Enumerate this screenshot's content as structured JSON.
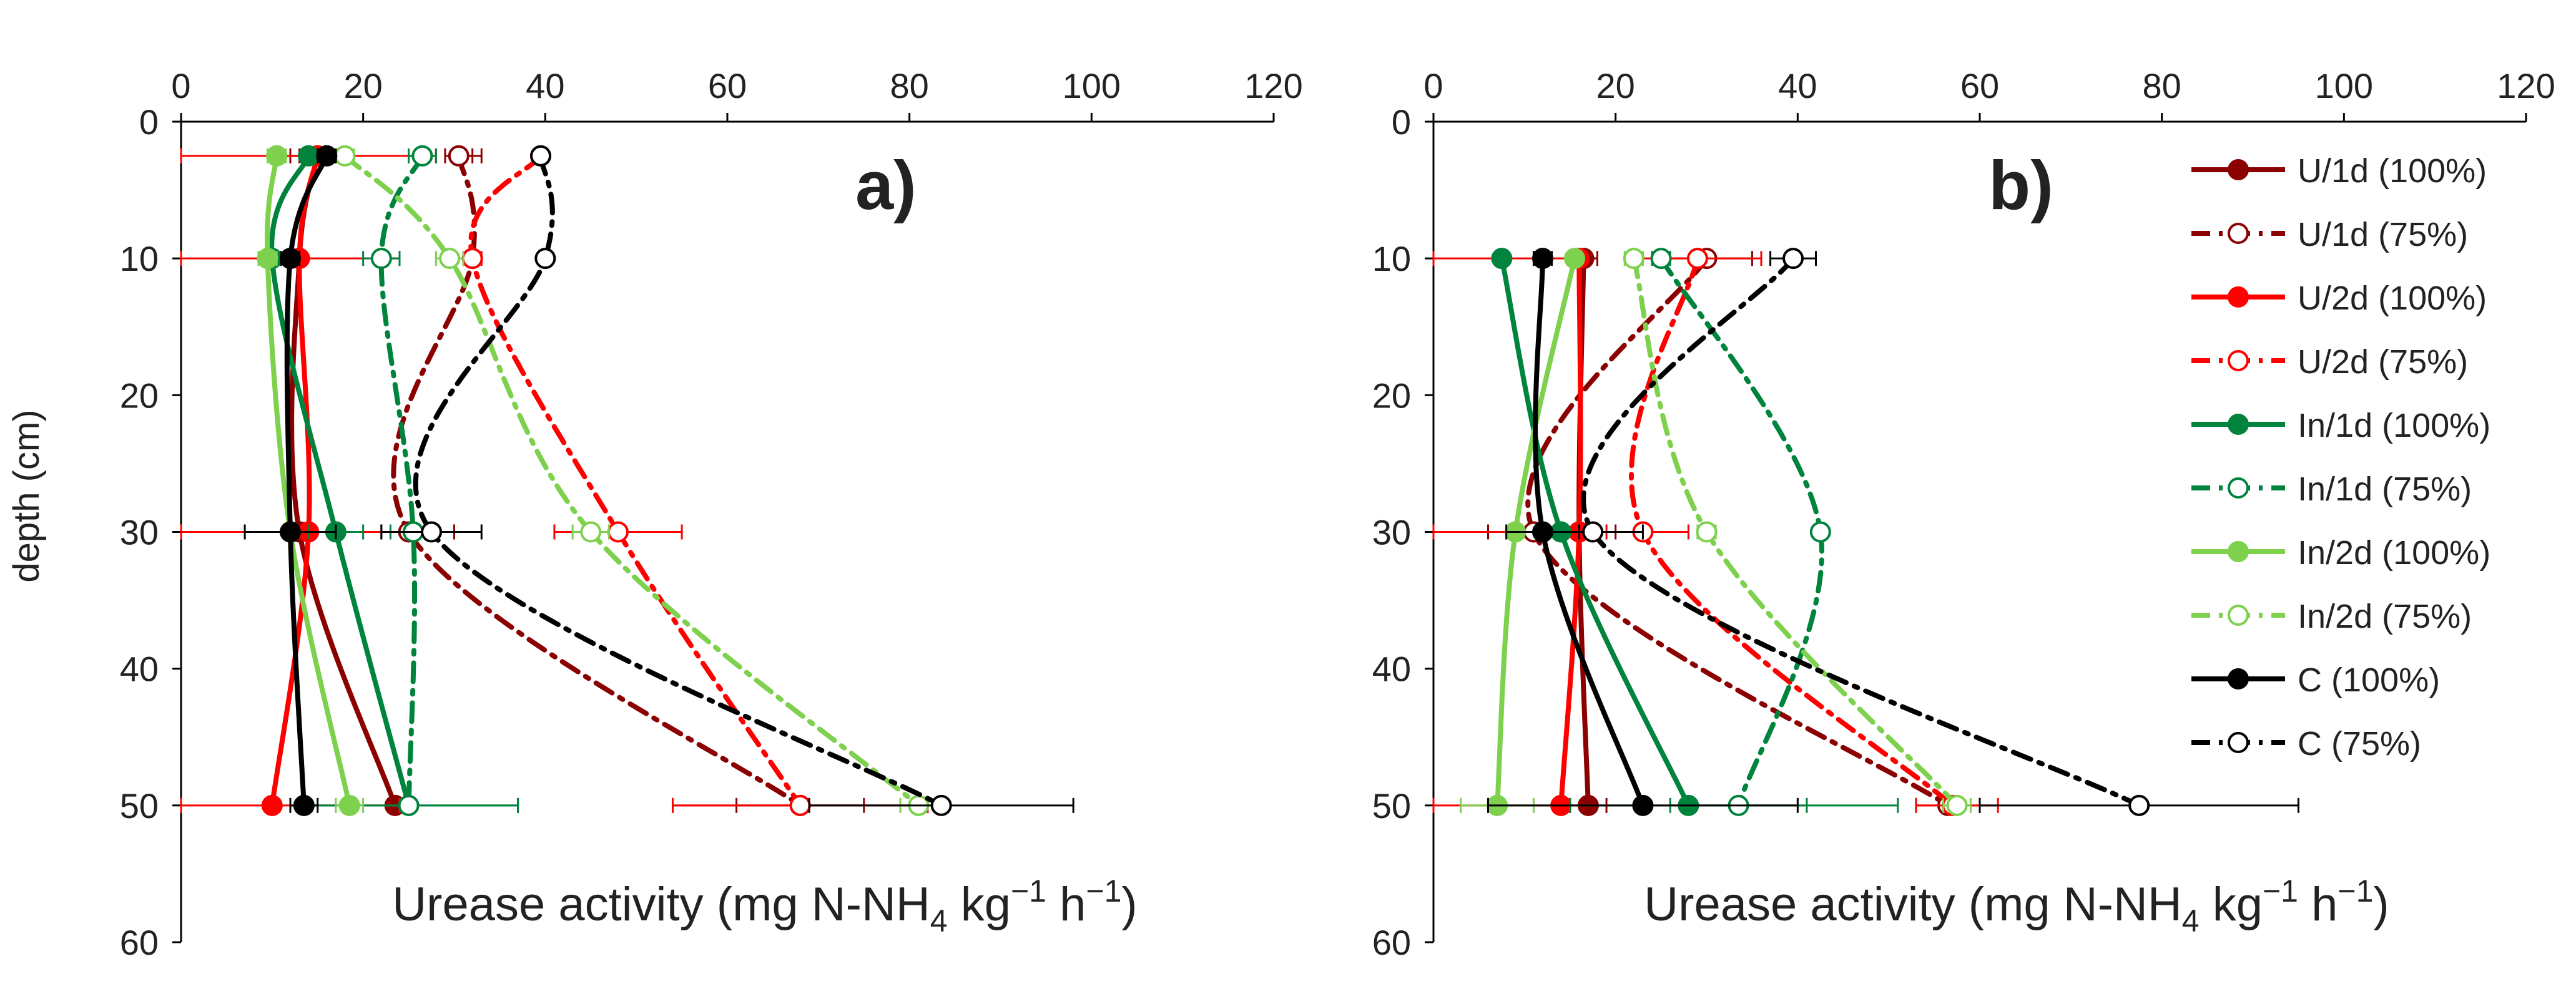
{
  "figure": {
    "shared_ylabel": "depth (cm)"
  },
  "chart_data": [
    {
      "type": "line",
      "panel_label": "a)",
      "x_axis": {
        "label_main": "Urease activity (mg N-NH",
        "label_sub": "4",
        "label_mid": " kg",
        "label_sup1": "−1",
        "label_end": " h",
        "label_sup2": "−1",
        "label_close": ")",
        "range": [
          0,
          120
        ],
        "ticks": [
          0,
          20,
          40,
          60,
          80,
          100,
          120
        ],
        "position": "top"
      },
      "y_axis": {
        "label": "depth (cm)",
        "range": [
          0,
          60
        ],
        "ticks": [
          0,
          10,
          20,
          30,
          40,
          50,
          60
        ],
        "inverted": true
      },
      "series": [
        {
          "name": "U/1d (100%)",
          "color": "#8B0000",
          "dash": "solid",
          "filled": true,
          "points": [
            [
              15,
              2.5
            ],
            [
              13,
              10
            ],
            [
              13,
              30
            ],
            [
              23.5,
              50
            ]
          ],
          "err": [
            [
              [
                12,
                17
              ],
              [
                13,
                10
              ]
            ],
            null,
            null,
            null
          ]
        },
        {
          "name": "U/1d (75%)",
          "color": "#8B0000",
          "dash": "dashdot",
          "filled": false,
          "points": [
            [
              30.5,
              2.5
            ],
            [
              32,
              10
            ],
            [
              25,
              30
            ],
            [
              68,
              50
            ]
          ],
          "err": [
            [
              [
                29,
                32
              ],
              [
                31,
                33
              ]
            ],
            null,
            [
              [
                22,
                28
              ],
              [
                25,
                30
              ]
            ],
            [
              [
                61,
                75
              ],
              [
                54,
                82
              ]
            ]
          ]
        },
        {
          "name": "U/2d (100%)",
          "color": "#FF0000",
          "dash": "solid",
          "filled": true,
          "points": [
            [
              15,
              2.5
            ],
            [
              13,
              10
            ],
            [
              14,
              30
            ],
            [
              10,
              50
            ]
          ],
          "err": [
            [
              [
                0,
                28
              ],
              null
            ],
            [
              [
                0,
                24
              ],
              null
            ],
            [
              [
                0,
                28
              ],
              null
            ],
            [
              [
                0,
                24
              ],
              null
            ]
          ]
        },
        {
          "name": "U/2d (75%)",
          "color": "#FF0000",
          "dash": "dashdot",
          "filled": false,
          "points": [
            [
              39.5,
              2.5
            ],
            [
              32,
              10
            ],
            [
              48,
              30
            ],
            [
              68,
              50
            ]
          ],
          "err": [
            null,
            [
              [
                31,
                33
              ],
              null
            ],
            [
              [
                41,
                55
              ],
              null
            ],
            [
              [
                54,
                82
              ],
              null
            ]
          ]
        },
        {
          "name": "In/1d (100%)",
          "color": "#00843D",
          "dash": "solid",
          "filled": true,
          "points": [
            [
              14,
              2.5
            ],
            [
              10,
              10
            ],
            [
              17,
              30
            ],
            [
              25,
              50
            ]
          ],
          "err": [
            null,
            null,
            [
              [
                14,
                20
              ],
              null
            ],
            [
              [
                13,
                37
              ],
              null
            ]
          ]
        },
        {
          "name": "In/1d (75%)",
          "color": "#00843D",
          "dash": "dashdot",
          "filled": false,
          "points": [
            [
              26.5,
              2.5
            ],
            [
              22,
              10
            ],
            [
              25.5,
              30
            ],
            [
              25,
              50
            ]
          ],
          "err": [
            [
              [
                25,
                28
              ],
              null
            ],
            [
              [
                20,
                24
              ],
              null
            ],
            [
              [
                23,
                28
              ],
              null
            ],
            [
              [
                13,
                37
              ],
              null
            ]
          ]
        },
        {
          "name": "In/2d (100%)",
          "color": "#7DD14D",
          "dash": "solid",
          "filled": true,
          "points": [
            [
              10.5,
              2.5
            ],
            [
              9.5,
              10
            ],
            [
              12,
              30
            ],
            [
              18.5,
              50
            ]
          ],
          "err": [
            [
              [
                9.5,
                11.5
              ],
              null
            ],
            [
              [
                8.5,
                10.5
              ],
              null
            ],
            null,
            [
              [
                17,
                20
              ],
              null
            ]
          ]
        },
        {
          "name": "In/2d (75%)",
          "color": "#7DD14D",
          "dash": "dashdot",
          "filled": false,
          "points": [
            [
              18,
              2.5
            ],
            [
              29.5,
              10
            ],
            [
              45,
              30
            ],
            [
              81,
              50
            ]
          ],
          "err": [
            [
              [
                17,
                19
              ],
              null
            ],
            [
              [
                28,
                31
              ],
              null
            ],
            [
              [
                43,
                47
              ],
              null
            ],
            [
              [
                79,
                83
              ],
              null
            ]
          ]
        },
        {
          "name": "C (100%)",
          "color": "#000000",
          "dash": "solid",
          "filled": true,
          "points": [
            [
              16,
              2.5
            ],
            [
              12,
              10
            ],
            [
              12,
              30
            ],
            [
              13.5,
              50
            ]
          ],
          "err": [
            [
              [
                15,
                17
              ],
              null
            ],
            [
              [
                11,
                13
              ],
              null
            ],
            [
              [
                7,
                17
              ],
              null
            ],
            [
              [
                12,
                15
              ],
              null
            ]
          ]
        },
        {
          "name": "C (75%)",
          "color": "#000000",
          "dash": "dashdot",
          "filled": false,
          "points": [
            [
              39.5,
              2.5
            ],
            [
              40,
              10
            ],
            [
              27.5,
              30
            ],
            [
              83.5,
              50
            ]
          ],
          "err": [
            [
              [
                39,
                40
              ],
              null
            ],
            [
              [
                39.5,
                40.5
              ],
              null
            ],
            [
              [
                22,
                33
              ],
              null
            ],
            [
              [
                69,
                98
              ],
              null
            ]
          ]
        }
      ]
    },
    {
      "type": "line",
      "panel_label": "b)",
      "x_axis": {
        "label_main": "Urease activity (mg N-NH",
        "label_sub": "4",
        "label_mid": " kg",
        "label_sup1": "−1",
        "label_end": " h",
        "label_sup2": "−1",
        "label_close": ")",
        "range": [
          0,
          120
        ],
        "ticks": [
          0,
          20,
          40,
          60,
          80,
          100,
          120
        ],
        "position": "top"
      },
      "y_axis": {
        "label": "depth (cm)",
        "range": [
          0,
          60
        ],
        "ticks": [
          0,
          10,
          20,
          30,
          40,
          50,
          60
        ],
        "inverted": true
      },
      "legend": {
        "placement": "right"
      },
      "series": [
        {
          "name": "U/1d (100%)",
          "color": "#8B0000",
          "dash": "solid",
          "filled": true,
          "points": [
            [
              16.5,
              10
            ],
            [
              16,
              30
            ],
            [
              17,
              50
            ]
          ],
          "err": [
            [
              [
                15,
                18
              ],
              null
            ],
            [
              [
                12,
                20
              ],
              null
            ],
            [
              [
                15,
                19
              ],
              null
            ]
          ]
        },
        {
          "name": "U/1d (75%)",
          "color": "#8B0000",
          "dash": "dashdot",
          "filled": false,
          "points": [
            [
              30,
              10
            ],
            [
              11,
              30
            ],
            [
              56.5,
              50
            ]
          ],
          "err": [
            [
              [
                25,
                35
              ],
              null
            ],
            [
              [
                6,
                16
              ],
              null
            ],
            [
              [
                53,
                60
              ],
              null
            ]
          ]
        },
        {
          "name": "U/2d (100%)",
          "color": "#FF0000",
          "dash": "solid",
          "filled": true,
          "points": [
            [
              16,
              10
            ],
            [
              16,
              30
            ],
            [
              14,
              50
            ]
          ],
          "err": [
            [
              [
                0,
                16
              ],
              null
            ],
            [
              [
                0,
                16
              ],
              null
            ],
            [
              [
                0,
                14
              ],
              null
            ]
          ]
        },
        {
          "name": "U/2d (75%)",
          "color": "#FF0000",
          "dash": "dashdot",
          "filled": false,
          "points": [
            [
              29,
              10
            ],
            [
              23,
              30
            ],
            [
              57,
              50
            ]
          ],
          "err": [
            [
              [
                22,
                36
              ],
              null
            ],
            [
              [
                19,
                28
              ],
              null
            ],
            [
              [
                53,
                62
              ],
              null
            ]
          ]
        },
        {
          "name": "In/1d (100%)",
          "color": "#00843D",
          "dash": "solid",
          "filled": true,
          "points": [
            [
              7.5,
              10
            ],
            [
              14,
              30
            ],
            [
              28,
              50
            ]
          ],
          "err": [
            null,
            [
              [
                12,
                16
              ],
              null
            ],
            [
              [
                15,
                41
              ],
              null
            ]
          ]
        },
        {
          "name": "In/1d (75%)",
          "color": "#00843D",
          "dash": "dashdot",
          "filled": false,
          "points": [
            [
              25,
              10
            ],
            [
              42.5,
              30
            ],
            [
              33.5,
              50
            ]
          ],
          "err": [
            [
              [
                24,
                26
              ],
              null
            ],
            [
              [
                42,
                43
              ],
              null
            ],
            [
              [
                26,
                51
              ],
              null
            ]
          ]
        },
        {
          "name": "In/2d (100%)",
          "color": "#7DD14D",
          "dash": "solid",
          "filled": true,
          "points": [
            [
              15.5,
              10
            ],
            [
              9,
              30
            ],
            [
              7,
              50
            ]
          ],
          "err": [
            null,
            null,
            [
              [
                3,
                11
              ],
              null
            ]
          ]
        },
        {
          "name": "In/2d (75%)",
          "color": "#7DD14D",
          "dash": "dashdot",
          "filled": false,
          "points": [
            [
              22,
              10
            ],
            [
              30,
              30
            ],
            [
              57.5,
              50
            ]
          ],
          "err": [
            [
              [
                21,
                23
              ],
              null
            ],
            [
              [
                29,
                31
              ],
              null
            ],
            [
              [
                56,
                59
              ],
              null
            ]
          ]
        },
        {
          "name": "C (100%)",
          "color": "#000000",
          "dash": "solid",
          "filled": true,
          "points": [
            [
              12,
              10
            ],
            [
              12,
              30
            ],
            [
              23,
              50
            ]
          ],
          "err": [
            [
              [
                11,
                13
              ],
              null
            ],
            [
              [
                8,
                16
              ],
              null
            ],
            [
              [
                6,
                40
              ],
              null
            ]
          ]
        },
        {
          "name": "C (75%)",
          "color": "#000000",
          "dash": "dashdot",
          "filled": false,
          "points": [
            [
              39.5,
              10
            ],
            [
              17.5,
              30
            ],
            [
              77.5,
              50
            ]
          ],
          "err": [
            [
              [
                37,
                42
              ],
              null
            ],
            [
              [
                12,
                23
              ],
              null
            ],
            [
              [
                60,
                95
              ],
              null
            ]
          ]
        }
      ]
    }
  ]
}
